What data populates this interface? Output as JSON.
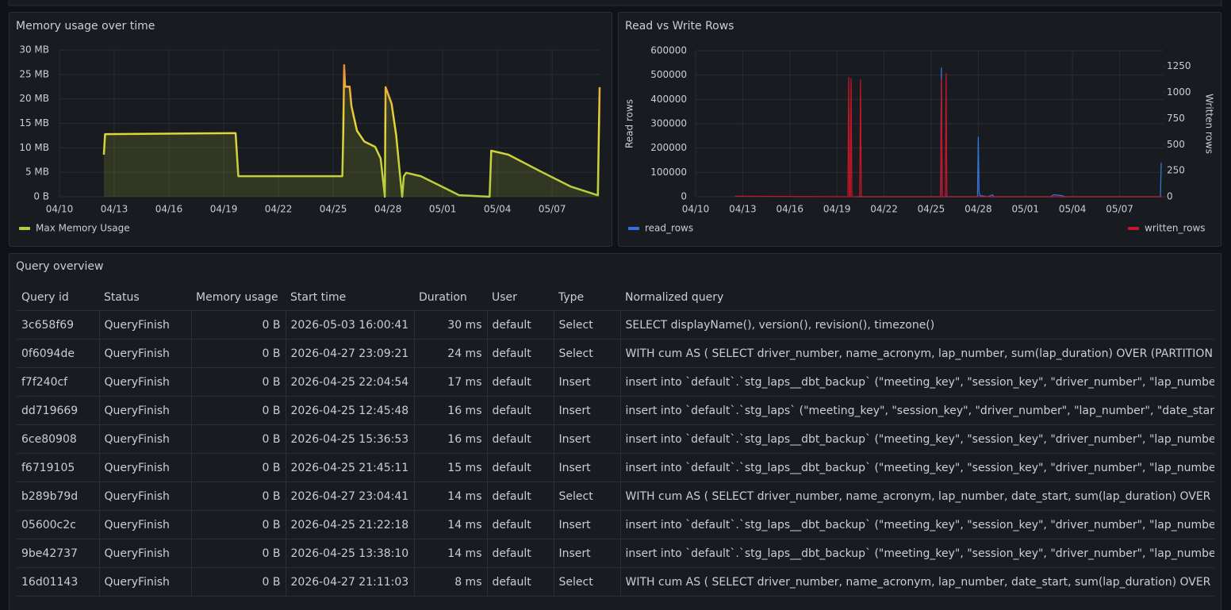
{
  "chart_data": [
    {
      "type": "line",
      "title": "Memory usage over time",
      "area": true,
      "grid": true,
      "xlim": [
        0,
        29.6
      ],
      "ylim": [
        0,
        30
      ],
      "xticks": [
        {
          "value": 0,
          "label": "04/10"
        },
        {
          "value": 3,
          "label": "04/13"
        },
        {
          "value": 6,
          "label": "04/16"
        },
        {
          "value": 9,
          "label": "04/19"
        },
        {
          "value": 12,
          "label": "04/22"
        },
        {
          "value": 15,
          "label": "04/25"
        },
        {
          "value": 18,
          "label": "04/28"
        },
        {
          "value": 21,
          "label": "05/01"
        },
        {
          "value": 24,
          "label": "05/04"
        },
        {
          "value": 27,
          "label": "05/07"
        }
      ],
      "yticks": [
        {
          "value": 0,
          "label": "0 B"
        },
        {
          "value": 5,
          "label": "5 MB"
        },
        {
          "value": 10,
          "label": "10 MB"
        },
        {
          "value": 15,
          "label": "15 MB"
        },
        {
          "value": 20,
          "label": "20 MB"
        },
        {
          "value": 25,
          "label": "25 MB"
        },
        {
          "value": 30,
          "label": "30 MB"
        }
      ],
      "series": [
        {
          "name": "Max Memory Usage",
          "color": "#b5cc3b",
          "x": [
            2.43,
            2.5,
            9.5,
            9.65,
            9.8,
            15.5,
            15.55,
            15.6,
            15.65,
            15.9,
            16.0,
            16.3,
            16.7,
            17.3,
            17.6,
            17.83,
            17.87,
            18.2,
            18.45,
            18.7,
            18.78,
            18.87,
            19.0,
            19.8,
            21.1,
            21.9,
            22.5,
            23.57,
            23.66,
            24.6,
            26.3,
            28.0,
            29.5,
            29.6
          ],
          "values": [
            8.6,
            12.8,
            13,
            13,
            4.2,
            4.2,
            13,
            26.9,
            22.5,
            22.5,
            18.5,
            13.5,
            11.3,
            10.2,
            7.8,
            0,
            22.4,
            19,
            12.6,
            2.9,
            0,
            4.2,
            4.9,
            4.2,
            1.8,
            0.3,
            0.2,
            0,
            9.4,
            8.6,
            5.3,
            2.1,
            0.3,
            22.4
          ]
        }
      ]
    },
    {
      "type": "line",
      "title": "Read vs Write Rows",
      "grid": true,
      "y_label": "Read rows",
      "y2_label": "Written rows",
      "xlim": [
        0,
        29.8
      ],
      "ylim": [
        0,
        600000
      ],
      "y2lim": [
        0,
        1400
      ],
      "xticks": [
        {
          "value": 0,
          "label": "04/10"
        },
        {
          "value": 3,
          "label": "04/13"
        },
        {
          "value": 6,
          "label": "04/16"
        },
        {
          "value": 9,
          "label": "04/19"
        },
        {
          "value": 12,
          "label": "04/22"
        },
        {
          "value": 15,
          "label": "04/25"
        },
        {
          "value": 18,
          "label": "04/28"
        },
        {
          "value": 21,
          "label": "05/01"
        },
        {
          "value": 24,
          "label": "05/04"
        },
        {
          "value": 27,
          "label": "05/07"
        }
      ],
      "yticks": [
        0,
        100000,
        200000,
        300000,
        400000,
        500000,
        600000
      ],
      "y2ticks": [
        0,
        250,
        500,
        750,
        1000,
        1250
      ],
      "series": [
        {
          "name": "read_rows",
          "color": "#3274d9",
          "x": [
            10.3,
            15.6,
            15.65,
            15.7,
            17.95,
            18.0,
            18.05,
            18.1,
            18.6,
            18.9,
            19.0,
            22.6,
            22.8,
            23.3,
            23.5,
            29.6,
            29.65
          ],
          "values": [
            0,
            0,
            530000,
            0,
            0,
            245000,
            20000,
            5000,
            0,
            8000,
            0,
            0,
            8000,
            5000,
            0,
            0,
            140000
          ]
        },
        {
          "name": "written_rows",
          "color": "#c4162a",
          "axis": "y2",
          "x": [
            2.5,
            9.7,
            9.75,
            9.8,
            9.85,
            9.9,
            9.95,
            10.45,
            10.5,
            10.55,
            15.6,
            15.65,
            15.7,
            15.9,
            15.95,
            16.0,
            29.7
          ],
          "values": [
            5,
            0,
            1143,
            0,
            0,
            1130,
            0,
            0,
            1120,
            0,
            0,
            1130,
            0,
            0,
            1181,
            0,
            0
          ]
        }
      ]
    }
  ],
  "table": {
    "title": "Query overview",
    "columns": [
      "Query id",
      "Status",
      "Memory usage",
      "Start time",
      "Duration",
      "User",
      "Type",
      "Normalized query"
    ],
    "rows": [
      [
        "3c658f69",
        "QueryFinish",
        "0 B",
        "2026-05-03 16:00:41",
        "30 ms",
        "default",
        "Select",
        "SELECT displayName(), version(), revision(), timezone()"
      ],
      [
        "0f6094de",
        "QueryFinish",
        "0 B",
        "2026-04-27 23:09:21",
        "24 ms",
        "default",
        "Select",
        "WITH cum AS ( SELECT driver_number, name_acronym, lap_number, sum(lap_duration) OVER (PARTITION BY d"
      ],
      [
        "f7f240cf",
        "QueryFinish",
        "0 B",
        "2026-04-25 22:04:54",
        "17 ms",
        "default",
        "Insert",
        "insert into `default`.`stg_laps__dbt_backup` (\"meeting_key\", \"session_key\", \"driver_number\", \"lap_number\", \"date"
      ],
      [
        "dd719669",
        "QueryFinish",
        "0 B",
        "2026-04-25 12:45:48",
        "16 ms",
        "default",
        "Insert",
        "insert into `default`.`stg_laps` (\"meeting_key\", \"session_key\", \"driver_number\", \"lap_number\", \"date_start\", \"dur"
      ],
      [
        "6ce80908",
        "QueryFinish",
        "0 B",
        "2026-04-25 15:36:53",
        "16 ms",
        "default",
        "Insert",
        "insert into `default`.`stg_laps__dbt_backup` (\"meeting_key\", \"session_key\", \"driver_number\", \"lap_number\", \"date"
      ],
      [
        "f6719105",
        "QueryFinish",
        "0 B",
        "2026-04-25 21:45:11",
        "15 ms",
        "default",
        "Insert",
        "insert into `default`.`stg_laps__dbt_backup` (\"meeting_key\", \"session_key\", \"driver_number\", \"lap_number\", \"date"
      ],
      [
        "b289b79d",
        "QueryFinish",
        "0 B",
        "2026-04-27 23:04:41",
        "14 ms",
        "default",
        "Select",
        "WITH cum AS ( SELECT driver_number, name_acronym, lap_number, date_start, sum(lap_duration) OVER (PART"
      ],
      [
        "05600c2c",
        "QueryFinish",
        "0 B",
        "2026-04-25 21:22:18",
        "14 ms",
        "default",
        "Insert",
        "insert into `default`.`stg_laps__dbt_backup` (\"meeting_key\", \"session_key\", \"driver_number\", \"lap_number\", \"date"
      ],
      [
        "9be42737",
        "QueryFinish",
        "0 B",
        "2026-04-25 13:38:10",
        "14 ms",
        "default",
        "Insert",
        "insert into `default`.`stg_laps__dbt_backup` (\"meeting_key\", \"session_key\", \"driver_number\", \"lap_number\", \"date"
      ],
      [
        "16d01143",
        "QueryFinish",
        "0 B",
        "2026-04-27 21:11:03",
        "8 ms",
        "default",
        "Select",
        "WITH cum AS ( SELECT driver_number, name_acronym, lap_number, date_start, sum(lap_duration) OVER (PART"
      ]
    ]
  }
}
